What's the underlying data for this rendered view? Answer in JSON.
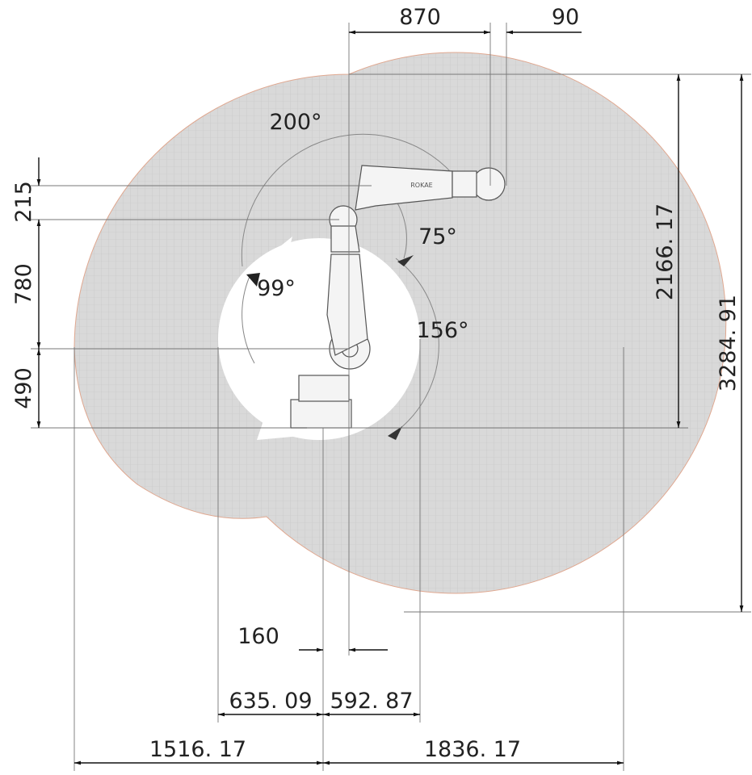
{
  "dimensions": {
    "top": [
      "870",
      "90"
    ],
    "left": [
      "215",
      "780",
      "490"
    ],
    "right": [
      "2166. 17",
      "3284. 91"
    ],
    "bottom": [
      "160",
      "635. 09",
      "592. 87",
      "1516. 17",
      "1836. 17"
    ]
  },
  "angles": [
    "200°",
    "75°",
    "99°",
    "156°"
  ],
  "robot_label": "ROKAE"
}
